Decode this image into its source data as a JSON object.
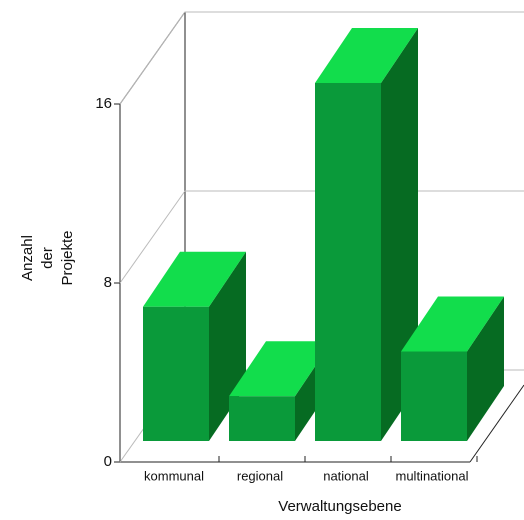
{
  "chart_data": {
    "type": "bar3d",
    "categories": [
      "kommunal",
      "regional",
      "national",
      "multinational"
    ],
    "values": [
      6,
      2,
      16,
      4
    ],
    "color": "#0a9a3a",
    "ylim": [
      0,
      16
    ],
    "yticks": [
      0,
      8,
      16
    ],
    "grid": true,
    "y_label": [
      "Anzahl",
      "der",
      "Projekte"
    ],
    "x_label": "Verwaltungsebene"
  }
}
